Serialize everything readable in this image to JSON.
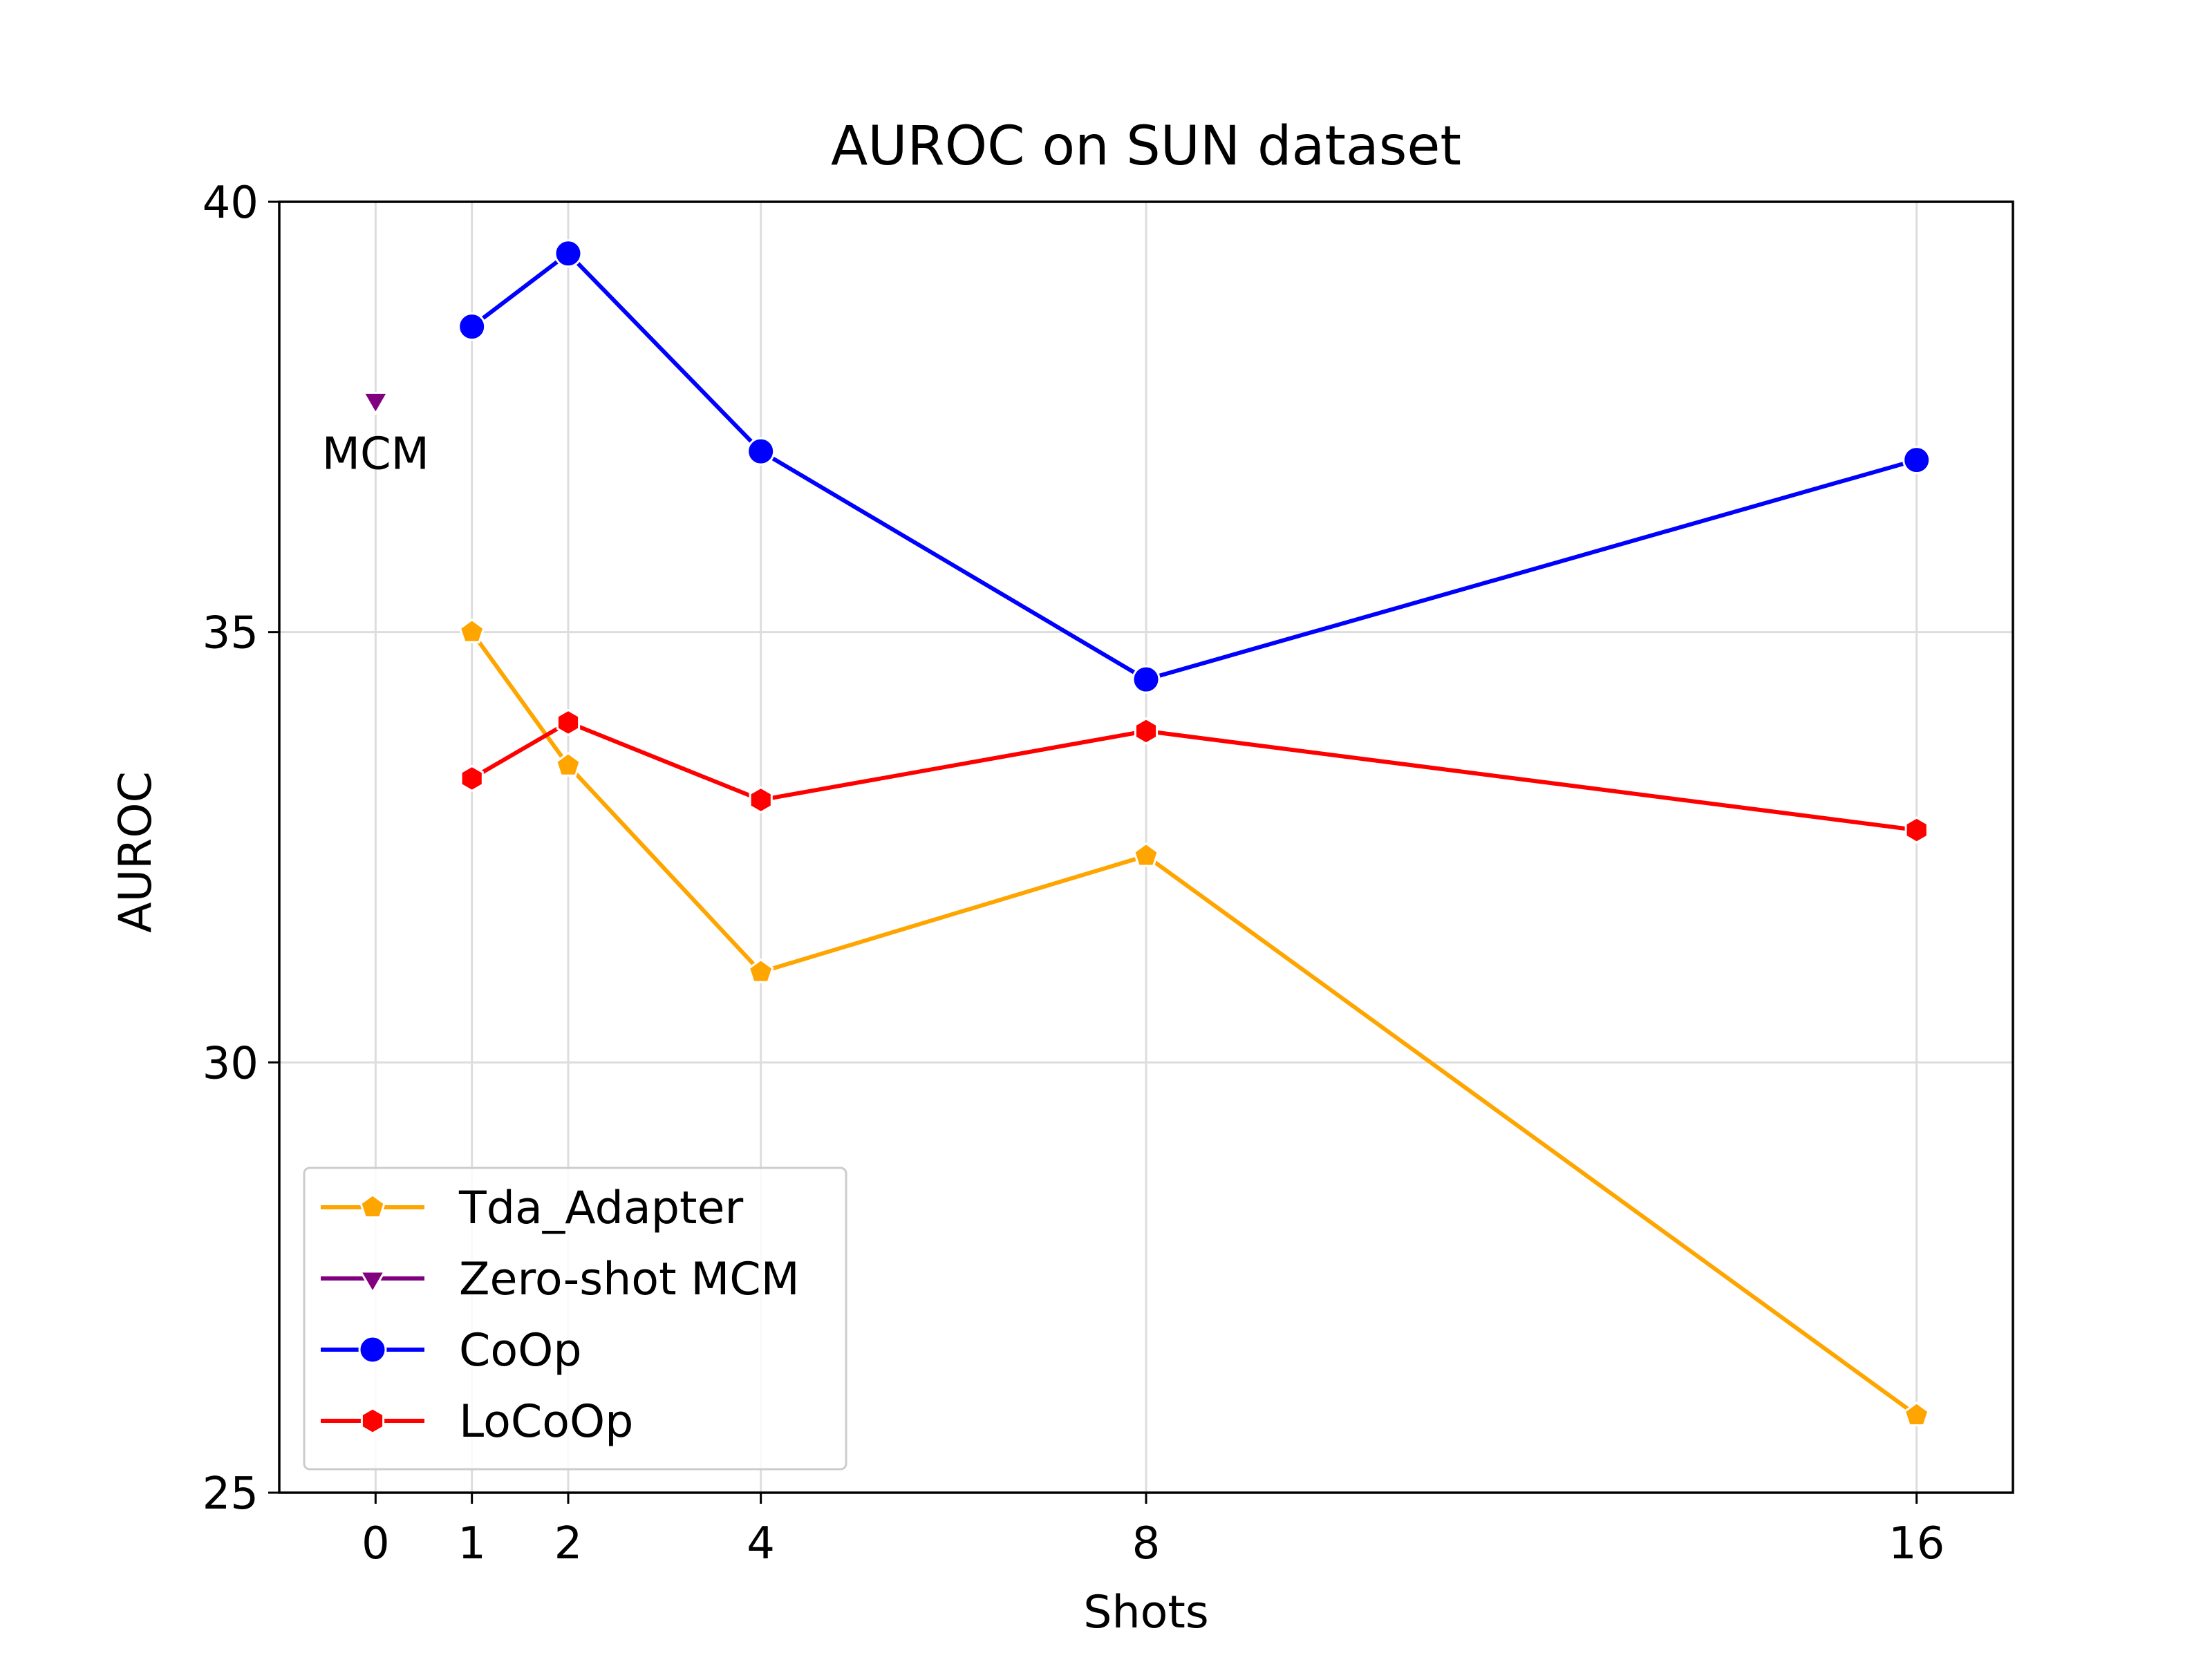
{
  "chart_data": {
    "type": "line",
    "title": "AUROC on SUN dataset",
    "xlabel": "Shots",
    "ylabel": "AUROC",
    "xlim": [
      -1,
      17
    ],
    "ylim": [
      25,
      40
    ],
    "xticks": [
      0,
      1,
      2,
      4,
      8,
      16
    ],
    "yticks": [
      25,
      30,
      35,
      40
    ],
    "grid": true,
    "legend_position": "lower-left",
    "series": [
      {
        "name": "Tda_Adapter",
        "color": "#FFA500",
        "marker": "pentagon",
        "x": [
          1,
          2,
          4,
          8,
          16
        ],
        "y": [
          35.0,
          33.45,
          31.05,
          32.4,
          25.9
        ]
      },
      {
        "name": "Zero-shot MCM",
        "color": "#800080",
        "marker": "triangle-down",
        "x": [
          0
        ],
        "y": [
          37.7
        ]
      },
      {
        "name": "CoOp",
        "color": "#0000FF",
        "marker": "circle",
        "x": [
          1,
          2,
          4,
          8,
          16
        ],
        "y": [
          38.55,
          39.4,
          37.1,
          34.45,
          37.0
        ]
      },
      {
        "name": "LoCoOp",
        "color": "#FF0000",
        "marker": "hexagon",
        "x": [
          1,
          2,
          4,
          8,
          16
        ],
        "y": [
          33.3,
          33.95,
          33.05,
          33.85,
          32.7
        ]
      }
    ],
    "annotations": [
      {
        "text": "MCM",
        "x": 0,
        "y": 37.7
      }
    ]
  }
}
